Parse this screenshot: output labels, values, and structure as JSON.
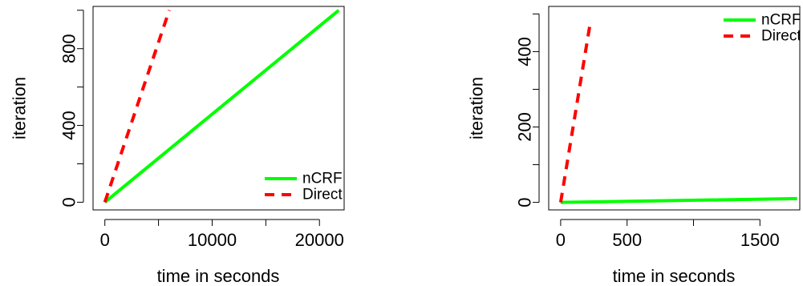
{
  "chart_data": [
    {
      "type": "line",
      "title": "",
      "xlabel": "time in seconds",
      "ylabel": "iteration",
      "xlim": [
        -1100,
        22300
      ],
      "ylim": [
        -40,
        1020
      ],
      "xticks": [
        0,
        5000,
        10000,
        15000,
        20000
      ],
      "xtick_labels": [
        "0",
        "",
        "10000",
        "",
        "20000"
      ],
      "yticks": [
        0,
        200,
        400,
        600,
        800,
        1000
      ],
      "ytick_labels": [
        "0",
        "",
        "400",
        "",
        "800",
        ""
      ],
      "grid": false,
      "legend": {
        "position": "bottom-right",
        "entries": [
          {
            "label": "nCRF",
            "color": "#00ff00",
            "style": "solid"
          },
          {
            "label": "Direct",
            "color": "#ff0000",
            "style": "dashed"
          }
        ]
      },
      "series": [
        {
          "name": "nCRF",
          "color": "#00ff00",
          "style": "solid",
          "x": [
            0,
            21800
          ],
          "y": [
            0,
            1000
          ]
        },
        {
          "name": "Direct",
          "color": "#ff0000",
          "style": "dashed",
          "x": [
            0,
            6000
          ],
          "y": [
            0,
            1000
          ]
        }
      ]
    },
    {
      "type": "line",
      "title": "",
      "xlabel": "time in seconds",
      "ylabel": "iteration",
      "xlim": [
        -90,
        1800
      ],
      "ylim": [
        -20,
        520
      ],
      "xticks": [
        0,
        500,
        1000,
        1500
      ],
      "xtick_labels": [
        "0",
        "500",
        "",
        "1500"
      ],
      "yticks": [
        0,
        100,
        200,
        300,
        400,
        500
      ],
      "ytick_labels": [
        "0",
        "",
        "200",
        "",
        "400",
        ""
      ],
      "grid": false,
      "legend": {
        "position": "top-right",
        "entries": [
          {
            "label": "nCRF",
            "color": "#00ff00",
            "style": "solid"
          },
          {
            "label": "Direct",
            "color": "#ff0000",
            "style": "dashed"
          }
        ]
      },
      "series": [
        {
          "name": "nCRF",
          "color": "#00ff00",
          "style": "solid",
          "x": [
            0,
            1780
          ],
          "y": [
            0,
            10
          ]
        },
        {
          "name": "Direct",
          "color": "#ff0000",
          "style": "dashed",
          "x": [
            0,
            220
          ],
          "y": [
            0,
            470
          ]
        }
      ]
    }
  ]
}
